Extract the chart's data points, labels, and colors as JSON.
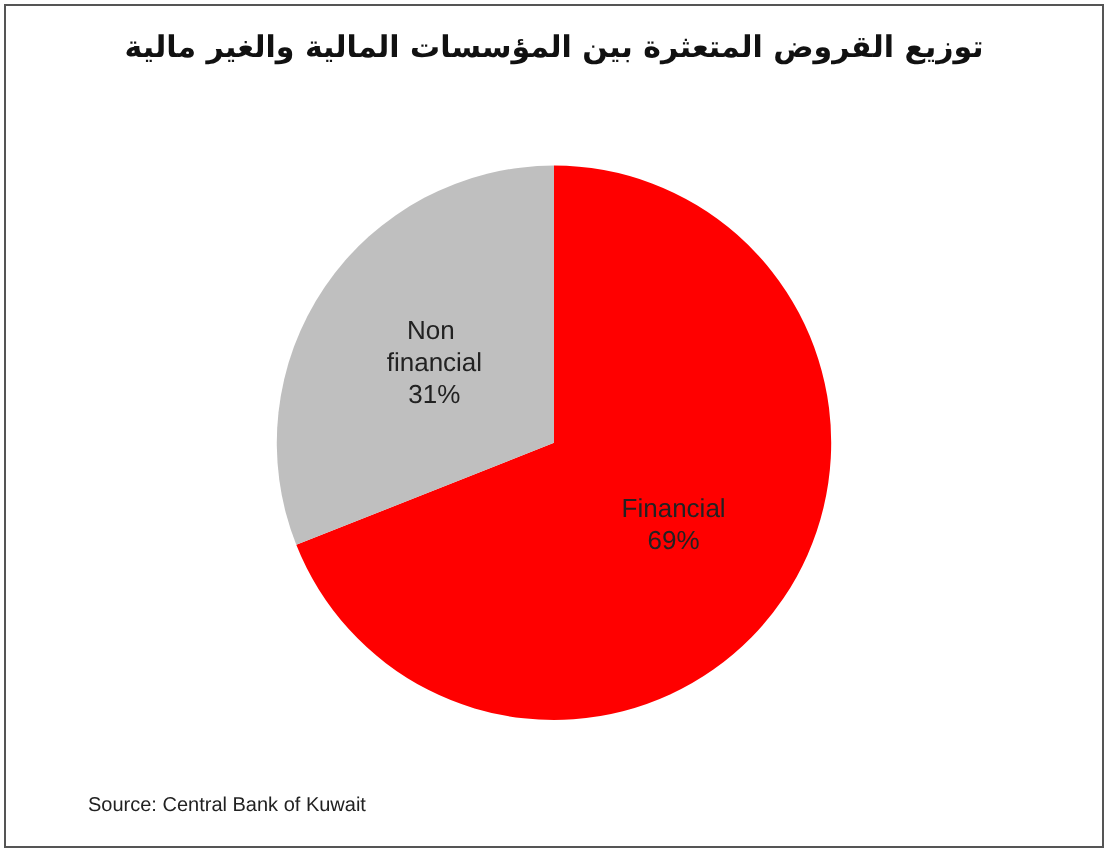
{
  "chart_data": {
    "type": "pie",
    "title": "توزيع القروض المتعثرة بين المؤسسات المالية والغير مالية",
    "categories": [
      "Financial",
      "Non financial"
    ],
    "values": [
      69,
      31
    ],
    "colors": [
      "#ff0000",
      "#bfbfbf"
    ],
    "value_labels": [
      "69%",
      "31%"
    ],
    "legend": false,
    "annotations": [
      "Source: Central Bank of Kuwait"
    ]
  }
}
